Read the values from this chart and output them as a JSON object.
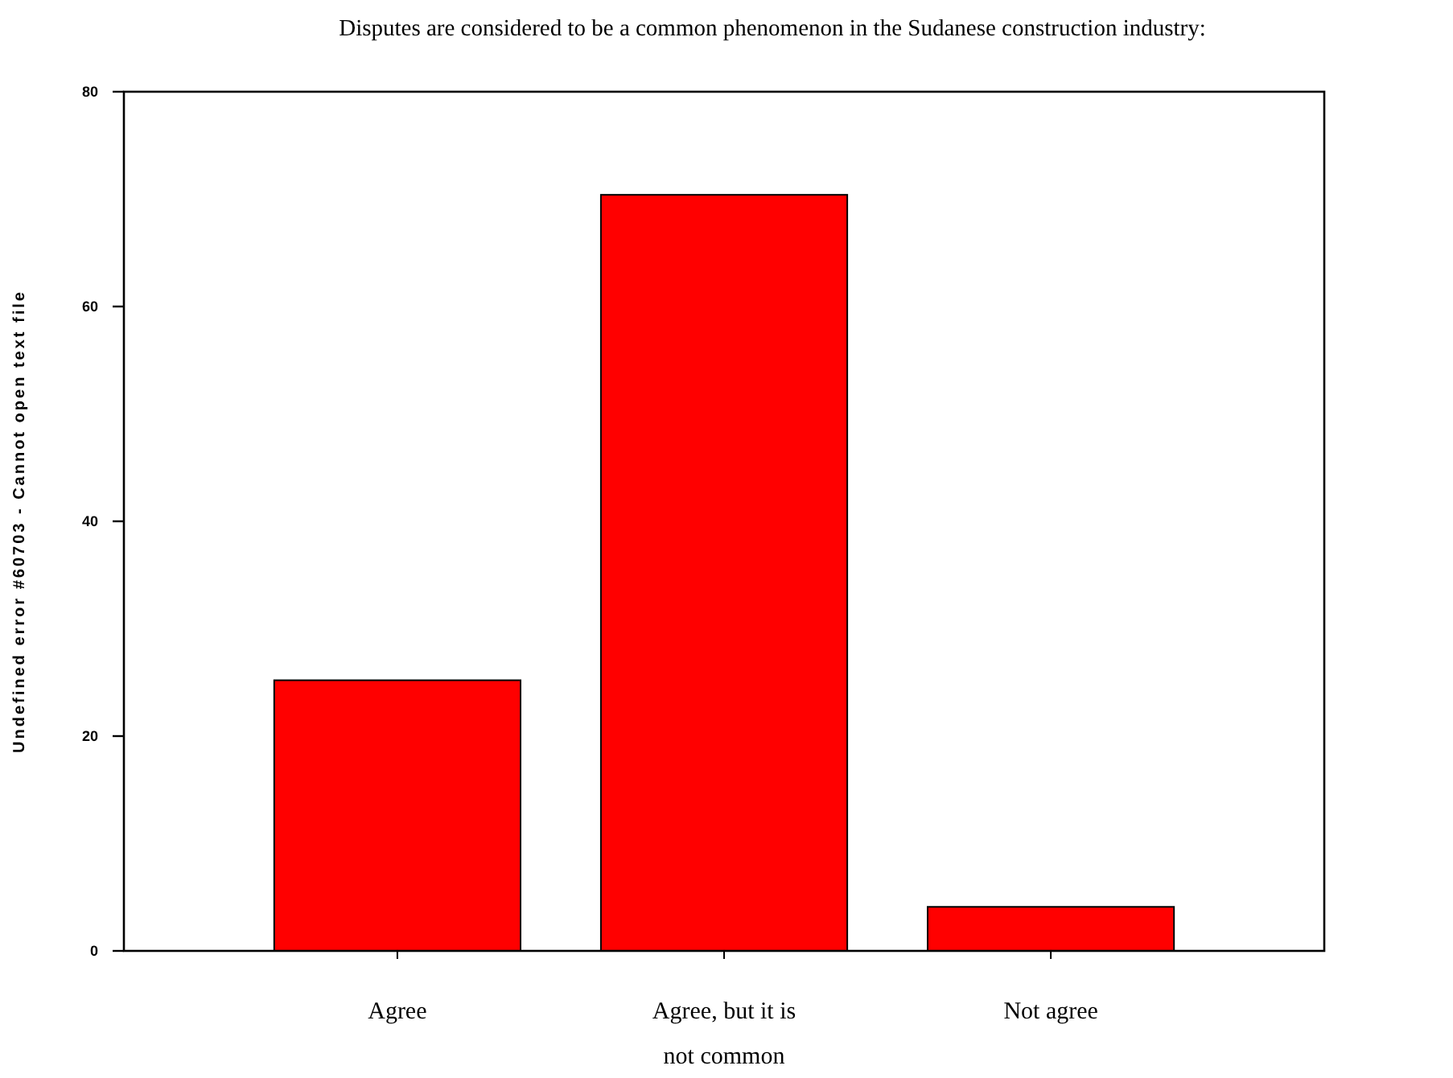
{
  "chart_data": {
    "type": "bar",
    "title": "Disputes are considered to be a common phenomenon in the Sudanese construction industry:",
    "ylabel": "Undefined error #60703 - Cannot open text file",
    "categories": [
      "Agree",
      "Agree, but it is not common",
      "Not agree"
    ],
    "values": [
      25.2,
      70.4,
      4.1
    ],
    "color": "#ff0000",
    "ylim": [
      0,
      80
    ],
    "yticks": [
      0,
      20,
      40,
      60,
      80
    ]
  }
}
